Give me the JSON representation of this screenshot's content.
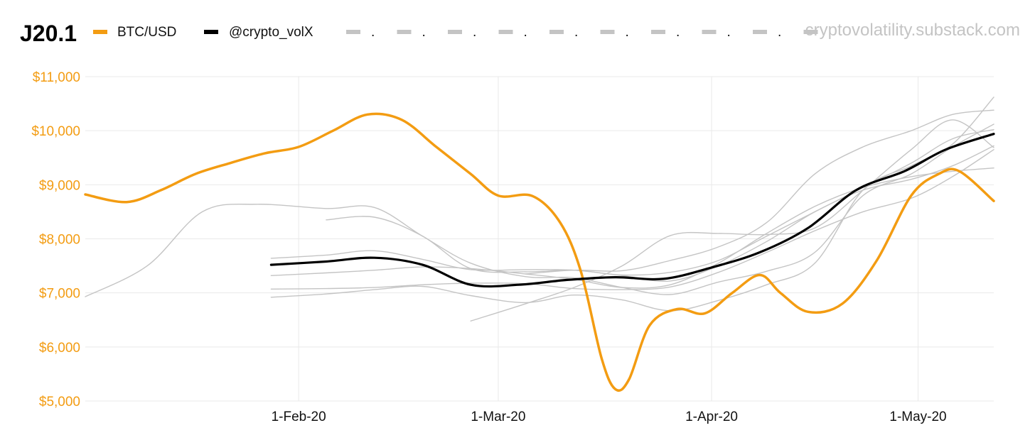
{
  "header": {
    "title": "J20.1",
    "watermark": "cryptovolatility.substack.com",
    "legend_dots": [
      "."
    ]
  },
  "colors": {
    "btc": "#f39c12",
    "volx": "#000000",
    "forecast": "#c4c4c4",
    "grid": "#e9e9e9"
  },
  "chart_data": {
    "type": "line",
    "title": "J20.1",
    "xlabel": "",
    "ylabel": "",
    "xlim": [
      "2020-01-01",
      "2020-05-12"
    ],
    "ylim": [
      5000,
      11000
    ],
    "y_ticks": [
      5000,
      6000,
      7000,
      8000,
      9000,
      10000,
      11000
    ],
    "y_tick_labels": [
      "$5,000",
      "$6,000",
      "$7,000",
      "$8,000",
      "$9,000",
      "$10,000",
      "$11,000"
    ],
    "x_ticks": [
      "2020-02-01",
      "2020-03-01",
      "2020-04-01",
      "2020-05-01"
    ],
    "x_tick_labels": [
      "1-Feb-20",
      "1-Mar-20",
      "1-Apr-20",
      "1-May-20"
    ],
    "grid": true,
    "legend_position": "top",
    "series": [
      {
        "name": "BTC/USD",
        "color": "#f39c12",
        "style": "main",
        "points": [
          [
            "2020-01-01",
            8820
          ],
          [
            "2020-01-07",
            8680
          ],
          [
            "2020-01-12",
            8900
          ],
          [
            "2020-01-17",
            9200
          ],
          [
            "2020-01-22",
            9400
          ],
          [
            "2020-01-27",
            9580
          ],
          [
            "2020-02-01",
            9700
          ],
          [
            "2020-02-06",
            10000
          ],
          [
            "2020-02-11",
            10300
          ],
          [
            "2020-02-16",
            10200
          ],
          [
            "2020-02-21",
            9700
          ],
          [
            "2020-02-26",
            9200
          ],
          [
            "2020-03-01",
            8800
          ],
          [
            "2020-03-06",
            8790
          ],
          [
            "2020-03-10",
            8300
          ],
          [
            "2020-03-13",
            7400
          ],
          [
            "2020-03-16",
            5800
          ],
          [
            "2020-03-18",
            5220
          ],
          [
            "2020-03-20",
            5400
          ],
          [
            "2020-03-23",
            6400
          ],
          [
            "2020-03-27",
            6700
          ],
          [
            "2020-03-31",
            6620
          ],
          [
            "2020-04-04",
            7000
          ],
          [
            "2020-04-08",
            7330
          ],
          [
            "2020-04-11",
            7000
          ],
          [
            "2020-04-15",
            6650
          ],
          [
            "2020-04-20",
            6800
          ],
          [
            "2020-04-25",
            7600
          ],
          [
            "2020-04-30",
            8800
          ],
          [
            "2020-05-04",
            9200
          ],
          [
            "2020-05-07",
            9250
          ],
          [
            "2020-05-12",
            8700
          ]
        ]
      },
      {
        "name": "@crypto_volX",
        "color": "#000000",
        "style": "main",
        "points": [
          [
            "2020-01-28",
            7520
          ],
          [
            "2020-02-05",
            7580
          ],
          [
            "2020-02-12",
            7650
          ],
          [
            "2020-02-19",
            7520
          ],
          [
            "2020-02-26",
            7150
          ],
          [
            "2020-03-04",
            7150
          ],
          [
            "2020-03-11",
            7240
          ],
          [
            "2020-03-18",
            7290
          ],
          [
            "2020-03-25",
            7260
          ],
          [
            "2020-04-01",
            7470
          ],
          [
            "2020-04-08",
            7750
          ],
          [
            "2020-04-15",
            8200
          ],
          [
            "2020-04-22",
            8900
          ],
          [
            "2020-04-29",
            9250
          ],
          [
            "2020-05-05",
            9650
          ],
          [
            "2020-05-12",
            9940
          ]
        ]
      },
      {
        "color": "#c4c4c4",
        "style": "faint",
        "points": [
          [
            "2020-01-01",
            6930
          ],
          [
            "2020-01-10",
            7500
          ],
          [
            "2020-01-18",
            8500
          ],
          [
            "2020-01-26",
            8640
          ],
          [
            "2020-02-05",
            8560
          ],
          [
            "2020-02-12",
            8580
          ],
          [
            "2020-02-19",
            8050
          ],
          [
            "2020-02-26",
            7550
          ],
          [
            "2020-03-05",
            7300
          ],
          [
            "2020-03-12",
            7280
          ],
          [
            "2020-03-19",
            7100
          ],
          [
            "2020-03-26",
            6970
          ],
          [
            "2020-04-02",
            7200
          ],
          [
            "2020-04-09",
            7400
          ],
          [
            "2020-04-16",
            7750
          ],
          [
            "2020-04-23",
            8800
          ],
          [
            "2020-04-30",
            9200
          ],
          [
            "2020-05-06",
            9700
          ],
          [
            "2020-05-12",
            10120
          ]
        ]
      },
      {
        "color": "#c4c4c4",
        "style": "faint",
        "points": [
          [
            "2020-01-28",
            7640
          ],
          [
            "2020-02-05",
            7700
          ],
          [
            "2020-02-12",
            7780
          ],
          [
            "2020-02-19",
            7620
          ],
          [
            "2020-02-26",
            7430
          ],
          [
            "2020-03-05",
            7430
          ],
          [
            "2020-03-12",
            7420
          ],
          [
            "2020-03-19",
            7320
          ],
          [
            "2020-03-26",
            7220
          ],
          [
            "2020-04-02",
            7500
          ],
          [
            "2020-04-09",
            7950
          ],
          [
            "2020-04-16",
            8500
          ],
          [
            "2020-04-23",
            8900
          ],
          [
            "2020-04-30",
            9100
          ],
          [
            "2020-05-06",
            9350
          ],
          [
            "2020-05-12",
            9720
          ]
        ]
      },
      {
        "color": "#c4c4c4",
        "style": "faint",
        "points": [
          [
            "2020-01-28",
            7320
          ],
          [
            "2020-02-05",
            7370
          ],
          [
            "2020-02-12",
            7420
          ],
          [
            "2020-02-19",
            7480
          ],
          [
            "2020-02-26",
            7450
          ],
          [
            "2020-03-05",
            7350
          ],
          [
            "2020-03-12",
            7250
          ],
          [
            "2020-03-19",
            7100
          ],
          [
            "2020-03-26",
            7150
          ],
          [
            "2020-04-02",
            7550
          ],
          [
            "2020-04-09",
            8100
          ],
          [
            "2020-04-16",
            8600
          ],
          [
            "2020-04-23",
            8950
          ],
          [
            "2020-04-30",
            9150
          ],
          [
            "2020-05-06",
            9250
          ],
          [
            "2020-05-12",
            9310
          ]
        ]
      },
      {
        "color": "#c4c4c4",
        "style": "faint",
        "points": [
          [
            "2020-01-28",
            7070
          ],
          [
            "2020-02-05",
            7080
          ],
          [
            "2020-02-12",
            7100
          ],
          [
            "2020-02-19",
            7150
          ],
          [
            "2020-02-26",
            7180
          ],
          [
            "2020-03-05",
            7170
          ],
          [
            "2020-03-12",
            7080
          ],
          [
            "2020-03-19",
            7060
          ],
          [
            "2020-03-26",
            7110
          ],
          [
            "2020-04-02",
            7380
          ],
          [
            "2020-04-09",
            7750
          ],
          [
            "2020-04-16",
            8150
          ],
          [
            "2020-04-23",
            8500
          ],
          [
            "2020-04-30",
            8750
          ],
          [
            "2020-05-06",
            9150
          ],
          [
            "2020-05-12",
            9650
          ]
        ]
      },
      {
        "color": "#c4c4c4",
        "style": "faint",
        "points": [
          [
            "2020-01-28",
            6920
          ],
          [
            "2020-02-05",
            6980
          ],
          [
            "2020-02-12",
            7060
          ],
          [
            "2020-02-19",
            7120
          ],
          [
            "2020-02-26",
            6950
          ],
          [
            "2020-03-05",
            6820
          ],
          [
            "2020-03-12",
            6960
          ],
          [
            "2020-03-19",
            6870
          ],
          [
            "2020-03-26",
            6670
          ],
          [
            "2020-04-02",
            6860
          ],
          [
            "2020-04-09",
            7150
          ],
          [
            "2020-04-16",
            7550
          ],
          [
            "2020-04-23",
            8900
          ],
          [
            "2020-04-30",
            9350
          ],
          [
            "2020-05-06",
            9750
          ],
          [
            "2020-05-12",
            10620
          ]
        ]
      },
      {
        "color": "#c4c4c4",
        "style": "faint",
        "points": [
          [
            "2020-02-05",
            8350
          ],
          [
            "2020-02-12",
            8400
          ],
          [
            "2020-02-19",
            8050
          ],
          [
            "2020-02-26",
            7450
          ],
          [
            "2020-03-05",
            7390
          ],
          [
            "2020-03-12",
            7420
          ],
          [
            "2020-03-19",
            7330
          ],
          [
            "2020-03-26",
            7380
          ],
          [
            "2020-04-02",
            7600
          ],
          [
            "2020-04-09",
            8050
          ],
          [
            "2020-04-16",
            8500
          ],
          [
            "2020-04-23",
            8950
          ],
          [
            "2020-04-30",
            9400
          ],
          [
            "2020-05-06",
            9850
          ],
          [
            "2020-05-12",
            10020
          ]
        ]
      },
      {
        "color": "#c4c4c4",
        "style": "faint",
        "points": [
          [
            "2020-02-26",
            6480
          ],
          [
            "2020-03-05",
            6800
          ],
          [
            "2020-03-12",
            7100
          ],
          [
            "2020-03-19",
            7500
          ],
          [
            "2020-03-26",
            8060
          ],
          [
            "2020-04-02",
            8100
          ],
          [
            "2020-04-09",
            8080
          ],
          [
            "2020-04-16",
            8200
          ],
          [
            "2020-04-23",
            8900
          ],
          [
            "2020-04-30",
            9650
          ],
          [
            "2020-05-06",
            10200
          ],
          [
            "2020-05-12",
            9690
          ]
        ]
      },
      {
        "color": "#c4c4c4",
        "style": "faint",
        "points": [
          [
            "2020-03-05",
            7350
          ],
          [
            "2020-03-12",
            7420
          ],
          [
            "2020-03-19",
            7410
          ],
          [
            "2020-03-26",
            7600
          ],
          [
            "2020-04-02",
            7850
          ],
          [
            "2020-04-09",
            8300
          ],
          [
            "2020-04-16",
            9200
          ],
          [
            "2020-04-23",
            9700
          ],
          [
            "2020-04-30",
            10000
          ],
          [
            "2020-05-06",
            10300
          ],
          [
            "2020-05-12",
            10380
          ]
        ]
      }
    ]
  }
}
